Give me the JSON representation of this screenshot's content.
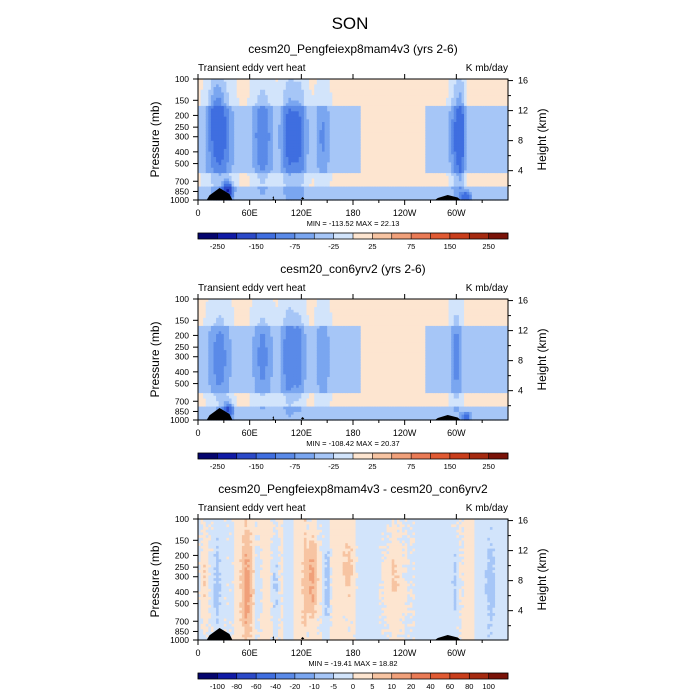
{
  "figure": {
    "title": "SON"
  },
  "chart_data": [
    {
      "type": "heatmap",
      "title": "cesm20_Pengfeiexp8mam4v3 (yrs 2-6)",
      "left_label": "Transient eddy vert heat",
      "right_label": "K mb/day",
      "ylabel": "Pressure (mb)",
      "ylabel_right": "Height (km)",
      "x_ticks": [
        "0",
        "60E",
        "120E",
        "180",
        "120W",
        "60W"
      ],
      "y_ticks": [
        "100",
        "150",
        "200",
        "250",
        "300",
        "400",
        "500",
        "700",
        "850",
        "1000"
      ],
      "y_ticks_right": [
        "16",
        "12",
        "8",
        "4"
      ],
      "stats": "MIN = -113.52  MAX =  22.13",
      "min": -113.52,
      "max": 22.13,
      "colorbar_levels": [
        -300,
        -250,
        -200,
        -150,
        -100,
        -75,
        -50,
        -25,
        0,
        25,
        50,
        75,
        100,
        150,
        200,
        250,
        300
      ],
      "colorbar_labels": [
        "-250",
        "-150",
        "-75",
        "-25",
        "25",
        "75",
        "150",
        "250"
      ],
      "colorbar_label_indices": [
        1,
        3,
        5,
        7,
        9,
        11,
        13,
        15
      ],
      "colors": [
        "#05056e",
        "#101aa6",
        "#2b49c8",
        "#3f6ee0",
        "#5a8ae8",
        "#7aa6f0",
        "#a6c6f7",
        "#d2e4fb",
        "#fde5d0",
        "#f7c4a2",
        "#f0a07a",
        "#e97a55",
        "#e05a33",
        "#c93e1c",
        "#a52a10",
        "#7a1208"
      ],
      "patches": [
        {
          "x": 25,
          "p": 310,
          "wx": 10,
          "wl": 0.32,
          "v": -85
        },
        {
          "x": 22,
          "p": 180,
          "wx": 6,
          "wl": 0.2,
          "v": -40
        },
        {
          "x": 75,
          "p": 300,
          "wx": 8,
          "wl": 0.3,
          "v": -70
        },
        {
          "x": 105,
          "p": 300,
          "wx": 6,
          "wl": 0.32,
          "v": -80
        },
        {
          "x": 118,
          "p": 300,
          "wx": 6,
          "wl": 0.32,
          "v": -75
        },
        {
          "x": 145,
          "p": 300,
          "wx": 6,
          "wl": 0.26,
          "v": -50
        },
        {
          "x": 300,
          "p": 300,
          "wx": 5,
          "wl": 0.32,
          "v": -75
        },
        {
          "x": 306,
          "p": 300,
          "wx": 3,
          "wl": 0.32,
          "v": -65
        },
        {
          "x": 35,
          "p": 830,
          "wx": 4,
          "wl": 0.05,
          "v": -150
        },
        {
          "x": 312,
          "p": 950,
          "wx": 4,
          "wl": 0.03,
          "v": -120
        }
      ]
    },
    {
      "type": "heatmap",
      "title": "cesm20_con6yrv2 (yrs 2-6)",
      "left_label": "Transient eddy vert heat",
      "right_label": "K mb/day",
      "ylabel": "Pressure (mb)",
      "ylabel_right": "Height (km)",
      "x_ticks": [
        "0",
        "60E",
        "120E",
        "180",
        "120W",
        "60W"
      ],
      "y_ticks": [
        "100",
        "150",
        "200",
        "250",
        "300",
        "400",
        "500",
        "700",
        "850",
        "1000"
      ],
      "y_ticks_right": [
        "16",
        "12",
        "8",
        "4"
      ],
      "stats": "MIN = -108.42  MAX =  20.37",
      "min": -108.42,
      "max": 20.37,
      "colorbar_levels": [
        -300,
        -250,
        -200,
        -150,
        -100,
        -75,
        -50,
        -25,
        0,
        25,
        50,
        75,
        100,
        150,
        200,
        250,
        300
      ],
      "colorbar_labels": [
        "-250",
        "-150",
        "-75",
        "-25",
        "25",
        "75",
        "150",
        "250"
      ],
      "colorbar_label_indices": [
        1,
        3,
        5,
        7,
        9,
        11,
        13,
        15
      ],
      "colors": [
        "#05056e",
        "#101aa6",
        "#2b49c8",
        "#3f6ee0",
        "#5a8ae8",
        "#7aa6f0",
        "#a6c6f7",
        "#d2e4fb",
        "#fde5d0",
        "#f7c4a2",
        "#f0a07a",
        "#e97a55",
        "#e05a33",
        "#c93e1c",
        "#a52a10",
        "#7a1208"
      ],
      "patches": [
        {
          "x": 25,
          "p": 310,
          "wx": 9,
          "wl": 0.3,
          "v": -60
        },
        {
          "x": 75,
          "p": 300,
          "wx": 8,
          "wl": 0.3,
          "v": -55
        },
        {
          "x": 105,
          "p": 300,
          "wx": 6,
          "wl": 0.32,
          "v": -65
        },
        {
          "x": 118,
          "p": 300,
          "wx": 5,
          "wl": 0.3,
          "v": -55
        },
        {
          "x": 145,
          "p": 300,
          "wx": 6,
          "wl": 0.26,
          "v": -45
        },
        {
          "x": 300,
          "p": 300,
          "wx": 5,
          "wl": 0.32,
          "v": -55
        },
        {
          "x": 35,
          "p": 830,
          "wx": 4,
          "wl": 0.05,
          "v": -120
        },
        {
          "x": 312,
          "p": 950,
          "wx": 4,
          "wl": 0.03,
          "v": -90
        }
      ]
    },
    {
      "type": "heatmap",
      "title": "cesm20_Pengfeiexp8mam4v3 - cesm20_con6yrv2",
      "left_label": "Transient eddy vert heat",
      "right_label": "K mb/day",
      "ylabel": "Pressure (mb)",
      "ylabel_right": "Height (km)",
      "x_ticks": [
        "0",
        "60E",
        "120E",
        "180",
        "120W",
        "60W"
      ],
      "y_ticks": [
        "100",
        "150",
        "200",
        "250",
        "300",
        "400",
        "500",
        "700",
        "850",
        "1000"
      ],
      "y_ticks_right": [
        "16",
        "12",
        "8",
        "4"
      ],
      "stats": "MIN = -19.41  MAX =  18.82",
      "min": -19.41,
      "max": 18.82,
      "colorbar_levels": [
        -120,
        -100,
        -80,
        -60,
        -40,
        -20,
        -10,
        -5,
        0,
        5,
        10,
        20,
        40,
        60,
        80,
        100,
        120
      ],
      "colorbar_labels": [
        "-100",
        "-80",
        "-60",
        "-40",
        "-20",
        "-10",
        "-5",
        "0",
        "5",
        "10",
        "20",
        "40",
        "60",
        "80",
        "100"
      ],
      "colorbar_label_indices": [
        1,
        2,
        3,
        4,
        5,
        6,
        7,
        8,
        9,
        10,
        11,
        12,
        13,
        14,
        15
      ],
      "colors": [
        "#05056e",
        "#101aa6",
        "#2b49c8",
        "#3f6ee0",
        "#5a8ae8",
        "#7aa6f0",
        "#a6c6f7",
        "#d2e4fb",
        "#fde5d0",
        "#f7c4a2",
        "#f0a07a",
        "#e97a55",
        "#e05a33",
        "#c93e1c",
        "#a52a10",
        "#7a1208"
      ],
      "patches": [
        {
          "x": 22,
          "p": 360,
          "wx": 3,
          "wl": 0.3,
          "v": -8
        },
        {
          "x": 58,
          "p": 360,
          "wx": 5,
          "wl": 0.33,
          "v": 11
        },
        {
          "x": 70,
          "p": 380,
          "wx": 3,
          "wl": 0.3,
          "v": -6
        },
        {
          "x": 90,
          "p": 360,
          "wx": 3,
          "wl": 0.3,
          "v": -7
        },
        {
          "x": 132,
          "p": 320,
          "wx": 6,
          "wl": 0.3,
          "v": 14
        },
        {
          "x": 150,
          "p": 350,
          "wx": 3,
          "wl": 0.25,
          "v": -6
        },
        {
          "x": 298,
          "p": 350,
          "wx": 3,
          "wl": 0.3,
          "v": -7
        },
        {
          "x": 340,
          "p": 350,
          "wx": 4,
          "wl": 0.3,
          "v": -6
        },
        {
          "x": 8,
          "p": 320,
          "wx": 3,
          "wl": 0.3,
          "v": 6
        },
        {
          "x": 175,
          "p": 260,
          "wx": 6,
          "wl": 0.2,
          "v": 6
        },
        {
          "x": 225,
          "p": 350,
          "wx": 8,
          "wl": 0.25,
          "v": 6
        }
      ]
    }
  ]
}
